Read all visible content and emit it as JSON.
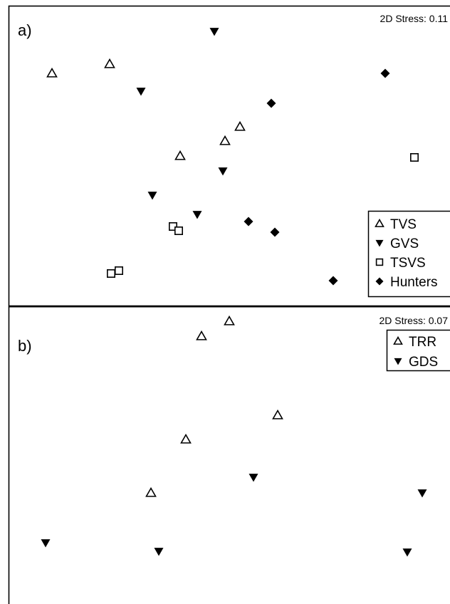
{
  "colors": {
    "marker": "#000000",
    "frame": "#000000",
    "background": "#ffffff"
  },
  "chart_data": [
    {
      "type": "scatter",
      "panel_label": "a)",
      "stress": "2D Stress: 0.11",
      "legend_position": "bottom-right",
      "axes_visible": false,
      "series": [
        {
          "name": "TVS",
          "marker": "open-triangle-up",
          "points": [
            [
              73,
              103
            ],
            [
              154,
              90
            ],
            [
              337,
              178
            ],
            [
              316,
              198
            ],
            [
              253,
              219
            ]
          ]
        },
        {
          "name": "GVS",
          "marker": "filled-triangle-down",
          "points": [
            [
              301,
              44
            ],
            [
              198,
              128
            ],
            [
              313,
              240
            ],
            [
              214,
              274
            ],
            [
              277,
              301
            ]
          ]
        },
        {
          "name": "TSVS",
          "marker": "open-square",
          "points": [
            [
              582,
              221
            ],
            [
              243,
              318
            ],
            [
              251,
              324
            ],
            [
              156,
              384
            ],
            [
              167,
              380
            ]
          ]
        },
        {
          "name": "Hunters",
          "marker": "filled-diamond",
          "points": [
            [
              541,
              103
            ],
            [
              381,
              145
            ],
            [
              349,
              311
            ],
            [
              386,
              326
            ],
            [
              468,
              394
            ]
          ]
        }
      ]
    },
    {
      "type": "scatter",
      "panel_label": "b)",
      "stress": "2D Stress: 0.07",
      "legend_position": "top-right",
      "axes_visible": false,
      "series": [
        {
          "name": "TRR",
          "marker": "open-triangle-up",
          "points": [
            [
              322,
              451
            ],
            [
              283,
              472
            ],
            [
              390,
              583
            ],
            [
              261,
              617
            ],
            [
              212,
              692
            ]
          ]
        },
        {
          "name": "GDS",
          "marker": "filled-triangle-down",
          "points": [
            [
              356,
              670
            ],
            [
              593,
              692
            ],
            [
              64,
              762
            ],
            [
              223,
              774
            ],
            [
              572,
              775
            ]
          ]
        }
      ]
    }
  ]
}
